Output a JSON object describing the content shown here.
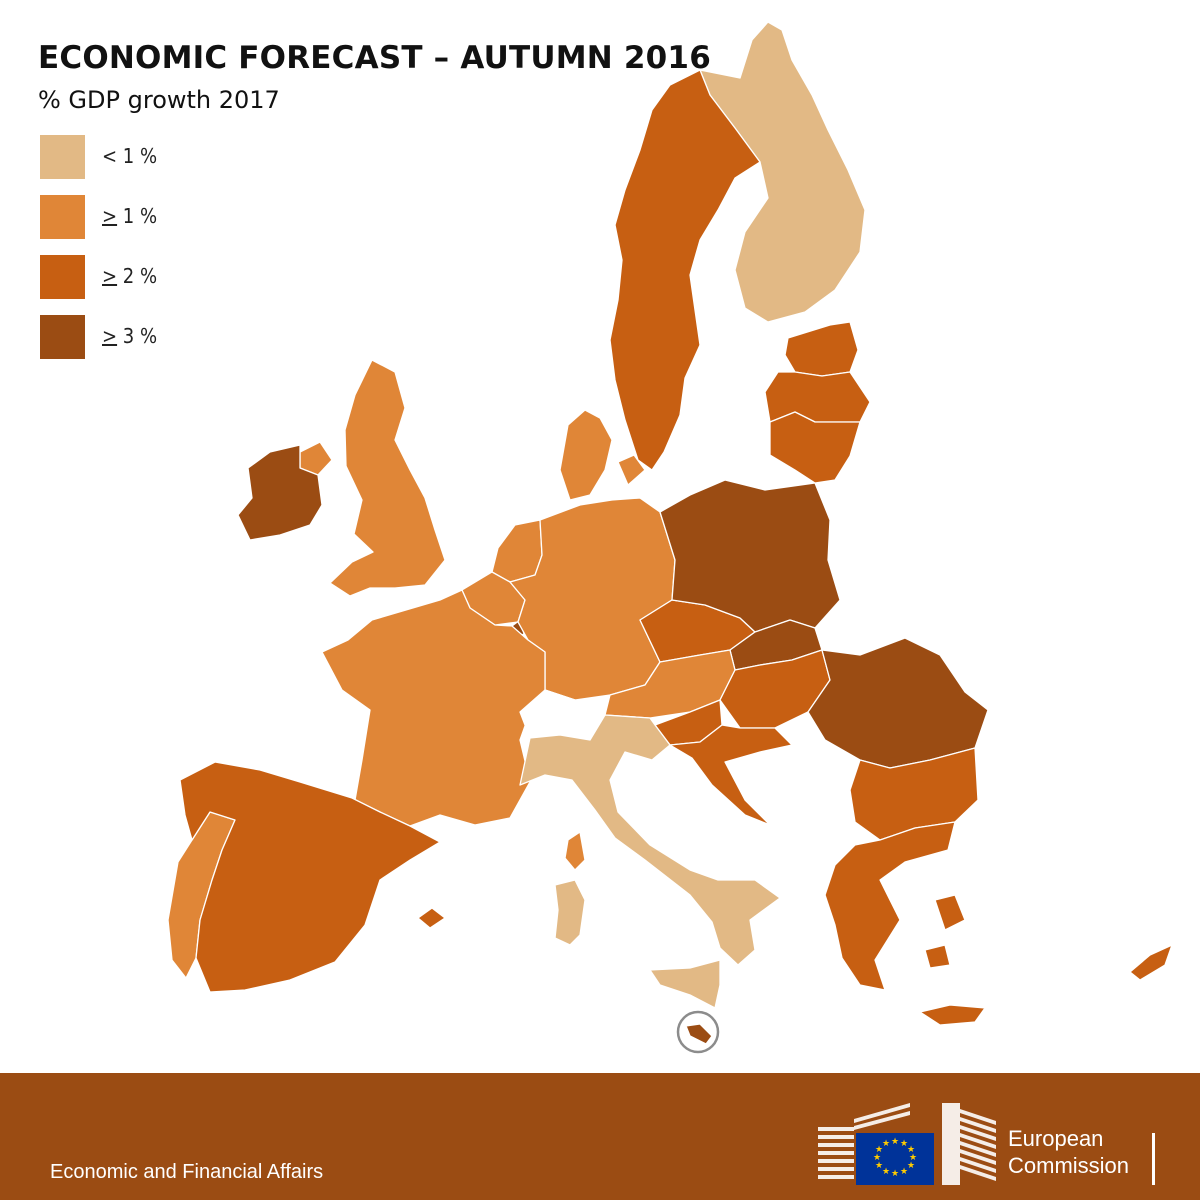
{
  "title": "ECONOMIC FORECAST – AUTUMN 2016",
  "subtitle": "% GDP growth 2017",
  "colors": {
    "below_1": "#e2b985",
    "from_1": "#e08637",
    "from_2": "#c75f12",
    "from_3": "#9b4c13",
    "footer_bg": "#9b4c13"
  },
  "legend": [
    {
      "sym": "<",
      "num": "1 %",
      "color": "#e2b985"
    },
    {
      "sym": ">",
      "num": "1 %",
      "color": "#e08637"
    },
    {
      "sym": ">",
      "num": "2 %",
      "color": "#c75f12"
    },
    {
      "sym": ">",
      "num": "3 %",
      "color": "#9b4c13"
    }
  ],
  "footer": {
    "dg": "Economic and Financial Affairs",
    "org_line1": "European",
    "org_line2": "Commission"
  }
}
